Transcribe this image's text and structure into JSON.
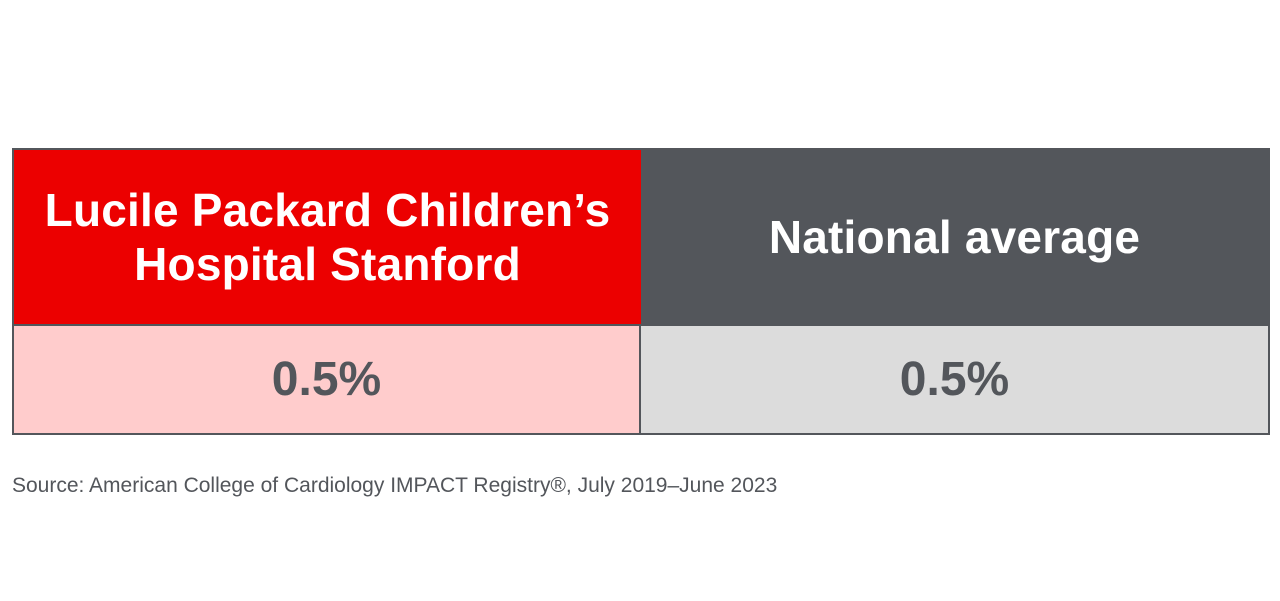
{
  "chart_data": {
    "type": "table",
    "columns": [
      {
        "header": "Lucile Packard Children’s Hospital Stanford",
        "value": "0.5%",
        "header_color": "#ec0000",
        "value_bg_color": "#ffcccc"
      },
      {
        "header": "National average",
        "value": "0.5%",
        "header_color": "#53565b",
        "value_bg_color": "#dcdcdc"
      }
    ]
  },
  "source": "Source: American College of Cardiology IMPACT Registry®, July 2019–June 2023"
}
